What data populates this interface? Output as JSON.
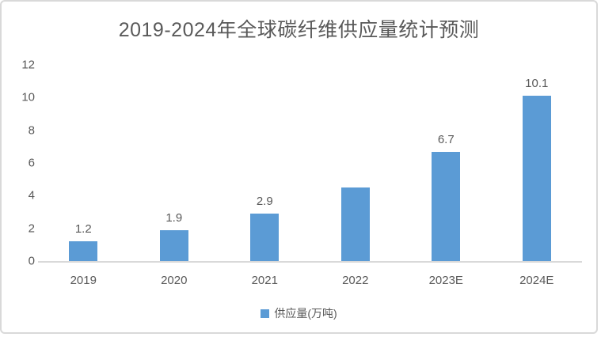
{
  "chart_data": {
    "type": "bar",
    "title": "2019-2024年全球碳纤维供应量统计预测",
    "categories": [
      "2019",
      "2020",
      "2021",
      "2022",
      "2023E",
      "2024E"
    ],
    "values": [
      1.2,
      1.9,
      2.9,
      4.5,
      6.7,
      10.1
    ],
    "data_labels": [
      "1.2",
      "1.9",
      "2.9",
      "",
      "6.7",
      "10.1"
    ],
    "ylim": [
      0,
      12
    ],
    "yticks": [
      0,
      2,
      4,
      6,
      8,
      10,
      12
    ],
    "grid": false,
    "xlabel": "",
    "ylabel": "",
    "bar_color": "#5b9bd5",
    "axis_line_color": "#d9d9d9",
    "text_color": "#595959",
    "legend": {
      "position": "bottom",
      "entries": [
        {
          "label": "供应量(万吨)",
          "color": "#5b9bd5"
        }
      ]
    }
  }
}
